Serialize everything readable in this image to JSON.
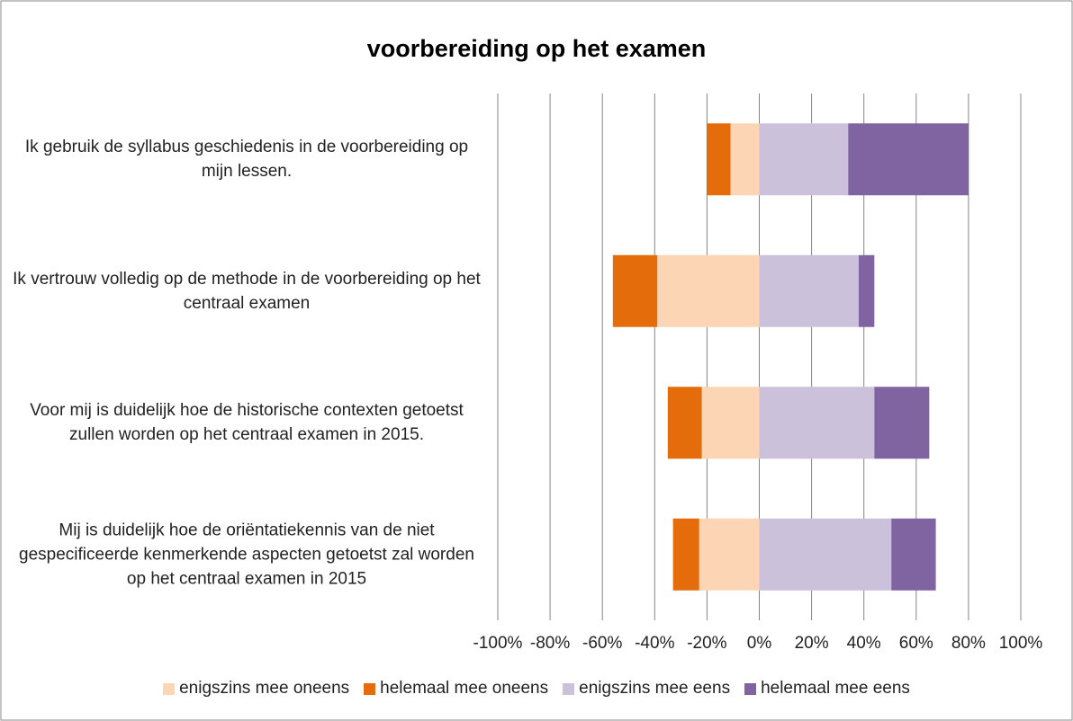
{
  "chart_data": {
    "type": "diverging-stacked-bar",
    "title": "voorbereiding op het examen",
    "categories": [
      "Ik gebruik de syllabus geschiedenis in de voorbereiding op mijn lessen.",
      "Ik vertrouw volledig op de methode in de voorbereiding op het centraal examen",
      "Voor mij is duidelijk hoe de historische contexten getoetst zullen worden op het centraal examen in 2015.",
      "Mij is duidelijk hoe de oriëntatiekennis van de niet gespecificeerde kenmerkende aspecten getoetst zal worden op het centraal examen in 2015"
    ],
    "series": [
      {
        "name": "enigszins mee oneens",
        "color": "#fcd5b5",
        "values": [
          -11,
          -39,
          -22,
          -23
        ]
      },
      {
        "name": "helemaal mee oneens",
        "color": "#e46c0a",
        "values": [
          -9,
          -17,
          -13,
          -10
        ]
      },
      {
        "name": "enigszins mee eens",
        "color": "#ccc1da",
        "values": [
          34,
          38,
          44,
          50.5
        ]
      },
      {
        "name": "helemaal mee eens",
        "color": "#8064a2",
        "values": [
          46,
          6,
          21,
          17
        ]
      }
    ],
    "xlim": [
      -100,
      100
    ],
    "xticks": [
      {
        "value": -100,
        "label": "-100%"
      },
      {
        "value": -80,
        "label": "-80%"
      },
      {
        "value": -60,
        "label": "-60%"
      },
      {
        "value": -40,
        "label": "-40%"
      },
      {
        "value": -20,
        "label": "-20%"
      },
      {
        "value": 0,
        "label": "0%"
      },
      {
        "value": 20,
        "label": "20%"
      },
      {
        "value": 40,
        "label": "40%"
      },
      {
        "value": 60,
        "label": "60%"
      },
      {
        "value": 80,
        "label": "80%"
      },
      {
        "value": 100,
        "label": "100%"
      }
    ],
    "grid": true
  }
}
